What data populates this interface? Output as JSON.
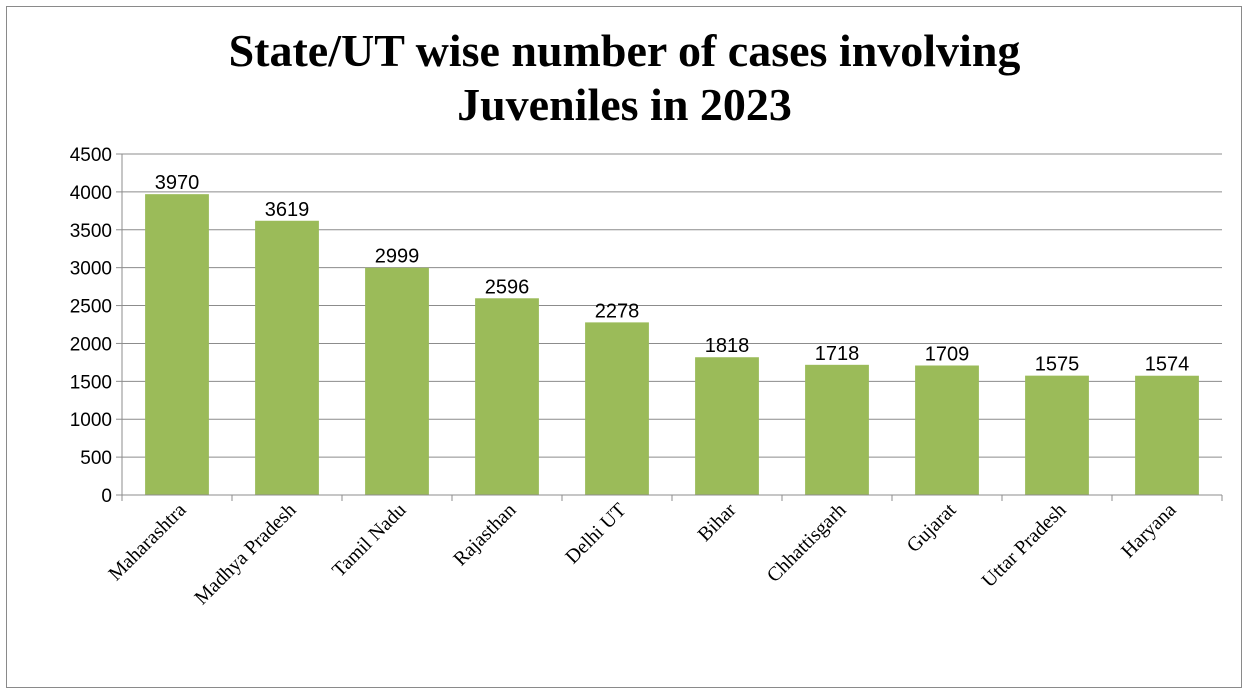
{
  "chart_data": {
    "type": "bar",
    "title_lines": [
      "State/UT wise number of cases involving",
      "Juveniles in 2023"
    ],
    "categories": [
      "Maharashtra",
      "Madhya Pradesh",
      "Tamil Nadu",
      "Rajasthan",
      "Delhi UT",
      "Bihar",
      "Chhattisgarh",
      "Gujarat",
      "Uttar Pradesh",
      "Haryana"
    ],
    "values": [
      3970,
      3619,
      2999,
      2596,
      2278,
      1818,
      1718,
      1709,
      1575,
      1574
    ],
    "ylim": [
      0,
      4500
    ],
    "yticks": [
      0,
      500,
      1000,
      1500,
      2000,
      2500,
      3000,
      3500,
      4000,
      4500
    ],
    "grid": true,
    "legend": "none",
    "bar_color": "#9bbb59",
    "data_labels": true
  }
}
